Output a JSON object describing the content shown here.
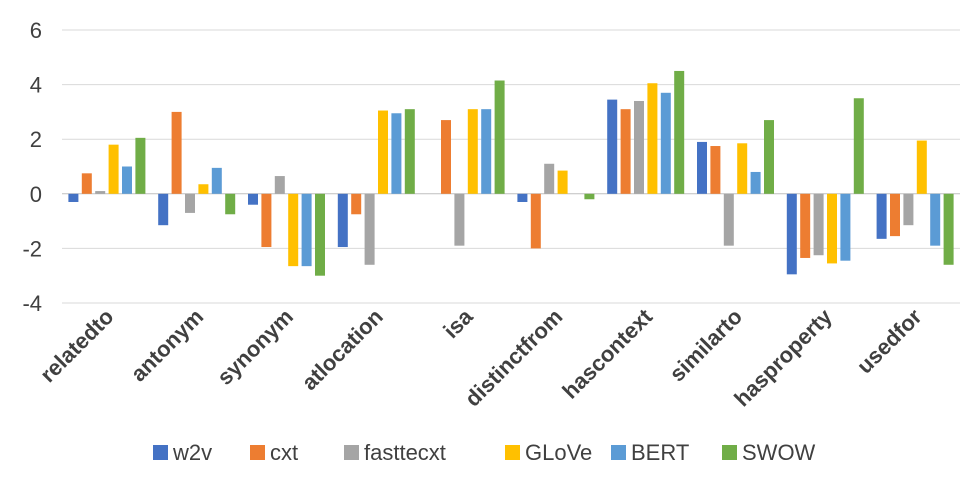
{
  "chart_data": {
    "type": "bar",
    "categories": [
      "relatedto",
      "antonym",
      "synonym",
      "atlocation",
      "isa",
      "distinctfrom",
      "hascontext",
      "similarto",
      "hasproperty",
      "usedfor"
    ],
    "series": [
      {
        "name": "w2v",
        "color": "#4472C4",
        "values": [
          -0.3,
          -1.15,
          -0.4,
          -1.95,
          0.0,
          -0.3,
          3.45,
          1.9,
          -2.95,
          -1.65
        ]
      },
      {
        "name": "cxt",
        "color": "#ED7D31",
        "values": [
          0.75,
          3.0,
          -1.95,
          -0.75,
          2.7,
          -2.0,
          3.1,
          1.75,
          -2.35,
          -1.55
        ]
      },
      {
        "name": "fasttecxt",
        "color": "#A5A5A5",
        "values": [
          0.1,
          -0.7,
          0.65,
          -2.6,
          -1.9,
          1.1,
          3.4,
          -1.9,
          -2.25,
          -1.15
        ]
      },
      {
        "name": "GLoVe",
        "color": "#FFC000",
        "values": [
          1.8,
          0.35,
          -2.65,
          3.05,
          3.1,
          0.85,
          4.05,
          1.85,
          -2.55,
          1.95
        ]
      },
      {
        "name": "BERT",
        "color": "#5B9BD5",
        "values": [
          1.0,
          0.95,
          -2.65,
          2.95,
          3.1,
          0.0,
          3.7,
          0.8,
          -2.45,
          -1.9
        ]
      },
      {
        "name": "SWOW",
        "color": "#70AD47",
        "values": [
          2.05,
          -0.75,
          -3.0,
          3.1,
          4.15,
          -0.2,
          4.5,
          2.7,
          3.5,
          -2.6
        ]
      }
    ],
    "yticks": [
      6,
      4,
      2,
      0,
      -2,
      -4
    ],
    "ylim": [
      -4,
      6
    ],
    "grid": true,
    "legend_position": "bottom"
  }
}
